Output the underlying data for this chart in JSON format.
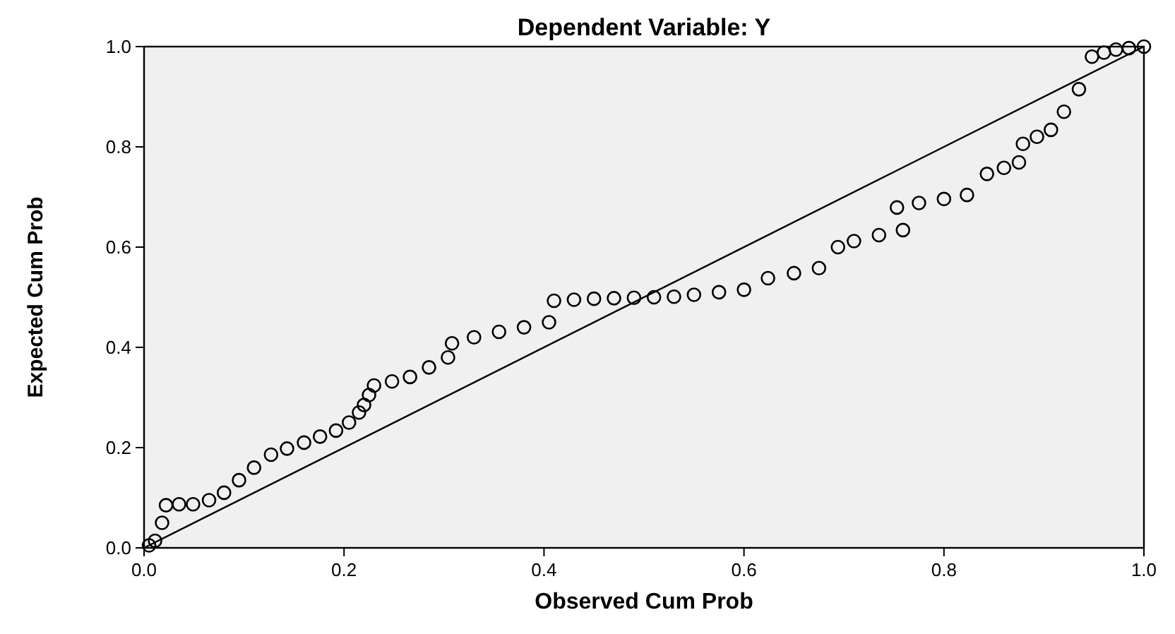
{
  "chart_data": {
    "type": "scatter",
    "title": "Dependent Variable: Y",
    "xlabel": "Observed Cum Prob",
    "ylabel": "Expected Cum Prob",
    "xlim": [
      0,
      1
    ],
    "ylim": [
      0,
      1
    ],
    "xticks": [
      {
        "value": 0,
        "label": "0.0"
      },
      {
        "value": 0.2,
        "label": "0.2"
      },
      {
        "value": 0.4,
        "label": "0.4"
      },
      {
        "value": 0.6,
        "label": "0.6"
      },
      {
        "value": 0.8,
        "label": "0.8"
      },
      {
        "value": 1,
        "label": "1.0"
      }
    ],
    "yticks": [
      {
        "value": 0,
        "label": "0.0"
      },
      {
        "value": 0.2,
        "label": "0.2"
      },
      {
        "value": 0.4,
        "label": "0.4"
      },
      {
        "value": 0.6,
        "label": "0.6"
      },
      {
        "value": 0.8,
        "label": "0.8"
      },
      {
        "value": 1,
        "label": "1.0"
      }
    ],
    "grid": false,
    "series": [
      {
        "marker": "circle",
        "color": "#000000",
        "x": [
          0.005,
          0.011,
          0.018,
          0.022,
          0.035,
          0.049,
          0.065,
          0.08,
          0.095,
          0.11,
          0.127,
          0.143,
          0.16,
          0.176,
          0.192,
          0.205,
          0.215,
          0.22,
          0.225,
          0.23,
          0.248,
          0.266,
          0.285,
          0.304,
          0.308,
          0.33,
          0.355,
          0.38,
          0.405,
          0.41,
          0.43,
          0.45,
          0.47,
          0.49,
          0.51,
          0.53,
          0.55,
          0.575,
          0.6,
          0.624,
          0.65,
          0.675,
          0.694,
          0.71,
          0.735,
          0.759,
          0.753,
          0.775,
          0.8,
          0.823,
          0.843,
          0.86,
          0.875,
          0.879,
          0.893,
          0.907,
          0.92,
          0.935,
          0.948,
          0.96,
          0.972,
          0.985,
          1.0
        ],
        "values": [
          0.005,
          0.014,
          0.05,
          0.085,
          0.087,
          0.087,
          0.095,
          0.11,
          0.135,
          0.16,
          0.186,
          0.198,
          0.21,
          0.222,
          0.234,
          0.25,
          0.27,
          0.285,
          0.305,
          0.324,
          0.332,
          0.341,
          0.36,
          0.38,
          0.408,
          0.42,
          0.431,
          0.44,
          0.45,
          0.493,
          0.495,
          0.497,
          0.498,
          0.499,
          0.5,
          0.501,
          0.505,
          0.51,
          0.515,
          0.538,
          0.548,
          0.558,
          0.6,
          0.612,
          0.624,
          0.634,
          0.679,
          0.688,
          0.696,
          0.704,
          0.746,
          0.758,
          0.769,
          0.806,
          0.82,
          0.834,
          0.87,
          0.915,
          0.98,
          0.988,
          0.994,
          0.997,
          1.0
        ]
      },
      {
        "type": "line",
        "line_style": "solid",
        "color": "#000000",
        "x": [
          0,
          1
        ],
        "values": [
          0,
          1
        ]
      }
    ]
  }
}
